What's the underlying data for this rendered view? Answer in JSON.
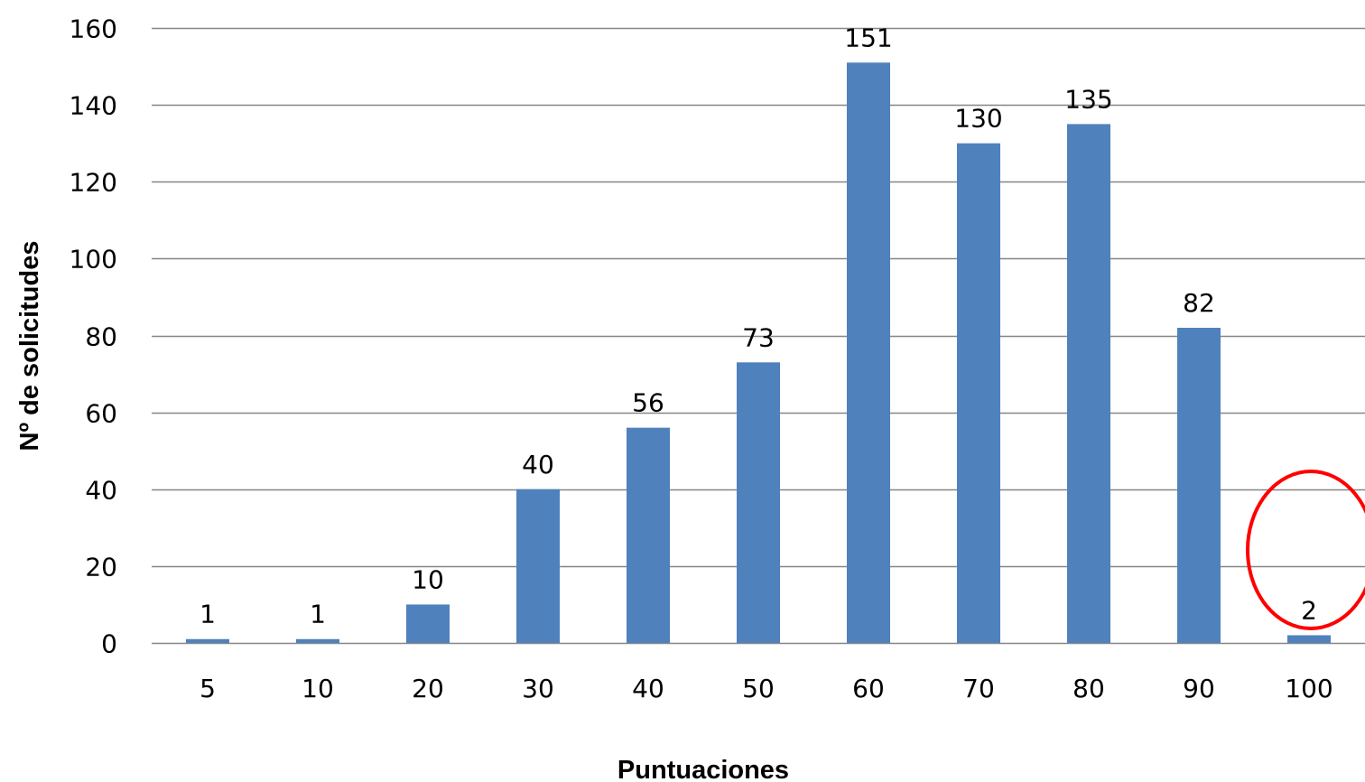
{
  "chart_data": {
    "type": "bar",
    "title": "",
    "xlabel": "Puntuaciones",
    "ylabel": "Nº de solicitudes",
    "categories": [
      "5",
      "10",
      "20",
      "30",
      "40",
      "50",
      "60",
      "70",
      "80",
      "90",
      "100"
    ],
    "values": [
      1,
      1,
      10,
      40,
      56,
      73,
      151,
      130,
      135,
      82,
      2
    ],
    "ylim": [
      0,
      160
    ],
    "yticks": [
      0,
      20,
      40,
      60,
      80,
      100,
      120,
      140,
      160
    ],
    "grid": true,
    "legend": "none",
    "bar_color": "#4F81BD",
    "grid_color": "#868686",
    "data_labels": true,
    "annotations": [
      {
        "type": "circle-highlight",
        "target_category": "100",
        "color": "#FF0000"
      }
    ]
  }
}
